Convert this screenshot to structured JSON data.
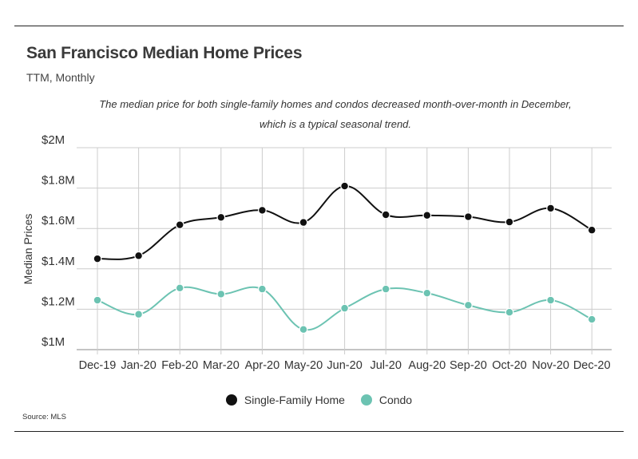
{
  "header": {
    "title": "San Francisco Median Home Prices",
    "subtitle": "TTM, Monthly",
    "annotation_line1": "The median price for both single-family homes and condos decreased month-over-month in December,",
    "annotation_line2": "which is a typical seasonal trend."
  },
  "footer": {
    "source": "Source:  MLS"
  },
  "colors": {
    "single_family": "#111111",
    "condo": "#6cc3b2",
    "grid": "#cccccc",
    "axis": "#888888"
  },
  "chart_data": {
    "type": "line",
    "title": "San Francisco Median Home Prices",
    "subtitle": "TTM, Monthly",
    "ylabel": "Median Prices",
    "xlabel": "",
    "categories": [
      "Dec-19",
      "Jan-20",
      "Feb-20",
      "Mar-20",
      "Apr-20",
      "May-20",
      "Jun-20",
      "Jul-20",
      "Aug-20",
      "Sep-20",
      "Oct-20",
      "Nov-20",
      "Dec-20"
    ],
    "ylim": [
      1000000,
      2000000
    ],
    "yticks": [
      1000000,
      1200000,
      1400000,
      1600000,
      1800000,
      2000000
    ],
    "ytick_labels": [
      "$1M",
      "$1.2M",
      "$1.4M",
      "$1.6M",
      "$1.8M",
      "$2M"
    ],
    "grid": true,
    "legend_position": "bottom",
    "series": [
      {
        "name": "Single-Family Home",
        "values": [
          1450000,
          1465000,
          1618000,
          1655000,
          1690000,
          1630000,
          1810000,
          1668000,
          1665000,
          1658000,
          1632000,
          1700000,
          1592000
        ]
      },
      {
        "name": "Condo",
        "values": [
          1245000,
          1175000,
          1305000,
          1275000,
          1300000,
          1100000,
          1205000,
          1300000,
          1280000,
          1220000,
          1185000,
          1245000,
          1150000
        ]
      }
    ]
  }
}
